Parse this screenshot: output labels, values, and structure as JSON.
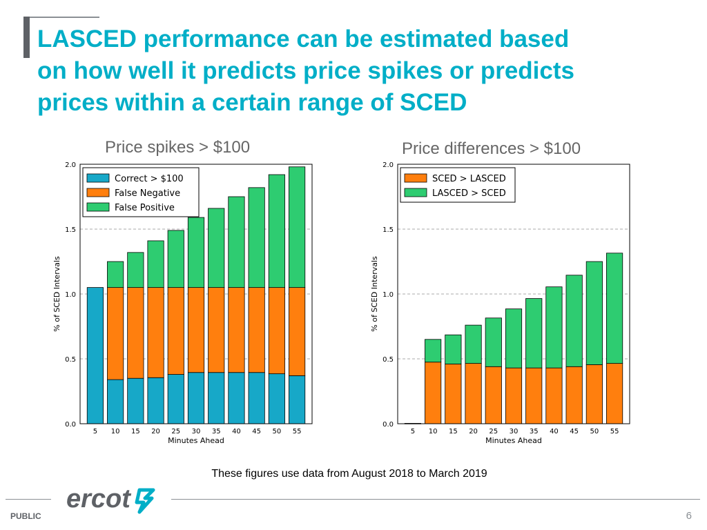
{
  "slide": {
    "title_lines": [
      "LASCED performance can be estimated based",
      "on how well it predicts price spikes or predicts",
      "prices within a certain range of SCED"
    ],
    "footnote": "These figures use data from August 2018 to March 2019",
    "classification": "PUBLIC",
    "page_number": "6",
    "logo_text": "ercot",
    "colors": {
      "title": "#00aec7",
      "orange": "#ff7f0e",
      "teal": "#17a8c8",
      "green": "#2ecc71"
    }
  },
  "chart_data": [
    {
      "type": "bar",
      "stacked": true,
      "caption": "Price spikes > $100",
      "xlabel": "Minutes Ahead",
      "ylabel": "% of SCED Intervals",
      "ylim": [
        0,
        2.0
      ],
      "yticks": [
        "0.0",
        "0.5",
        "1.0",
        "1.5",
        "2.0"
      ],
      "categories": [
        "5",
        "10",
        "15",
        "20",
        "25",
        "30",
        "35",
        "40",
        "45",
        "50",
        "55"
      ],
      "legend_position": "top-left",
      "series": [
        {
          "name": "Correct > $100",
          "color": "#17a8c8",
          "values": [
            1.05,
            0.34,
            0.35,
            0.355,
            0.38,
            0.395,
            0.395,
            0.395,
            0.395,
            0.385,
            0.37
          ]
        },
        {
          "name": "False Negative",
          "color": "#ff7f0e",
          "values": [
            0.0,
            0.71,
            0.7,
            0.695,
            0.67,
            0.655,
            0.655,
            0.655,
            0.655,
            0.665,
            0.68
          ]
        },
        {
          "name": "False Positive",
          "color": "#2ecc71",
          "values": [
            0.0,
            0.2,
            0.27,
            0.36,
            0.44,
            0.54,
            0.61,
            0.7,
            0.77,
            0.87,
            0.93
          ]
        }
      ]
    },
    {
      "type": "bar",
      "stacked": true,
      "caption": "Price differences > $100",
      "xlabel": "Minutes Ahead",
      "ylabel": "% of SCED Intervals",
      "ylim": [
        0,
        2.0
      ],
      "yticks": [
        "0.0",
        "0.5",
        "1.0",
        "1.5",
        "2.0"
      ],
      "categories": [
        "5",
        "10",
        "15",
        "20",
        "25",
        "30",
        "35",
        "40",
        "45",
        "50",
        "55"
      ],
      "legend_position": "top-left",
      "series": [
        {
          "name": "SCED > LASCED",
          "color": "#ff7f0e",
          "values": [
            0.003,
            0.475,
            0.46,
            0.465,
            0.44,
            0.43,
            0.43,
            0.43,
            0.44,
            0.455,
            0.465
          ]
        },
        {
          "name": "LASCED > SCED",
          "color": "#2ecc71",
          "values": [
            0.0,
            0.175,
            0.225,
            0.295,
            0.375,
            0.455,
            0.535,
            0.625,
            0.705,
            0.795,
            0.85
          ]
        }
      ]
    }
  ]
}
